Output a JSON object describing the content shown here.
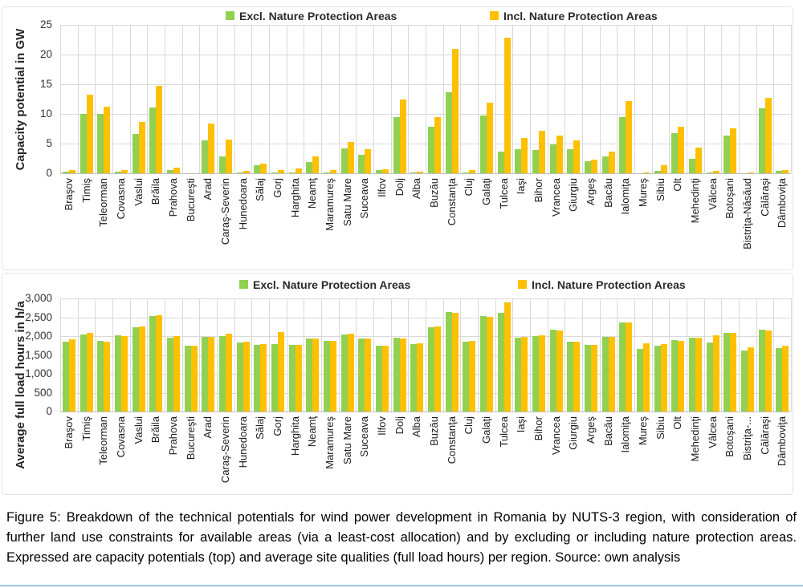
{
  "caption": "Figure 5: Breakdown of the technical potentials for wind power development in Romania by NUTS-3 region, with consideration of further land use constraints for available areas (via a least-cost allocation) and by excluding or including nature protection areas. Expressed are capacity potentials (top) and average site qualities (full load hours) per region. Source: own analysis",
  "page": {
    "bottom_rule_color": "#9DC3E6"
  },
  "colors": {
    "excl": "#92D050",
    "incl": "#FFC000",
    "gridline": "#D9D9D9"
  },
  "chart_data": [
    {
      "type": "bar",
      "title": "",
      "xlabel": "",
      "ylabel": "Capacity potential in GW",
      "ylim": [
        0,
        25
      ],
      "grid": true,
      "legend_position": "top",
      "yticks": [
        {
          "v": 0,
          "label": "0"
        },
        {
          "v": 5,
          "label": "5"
        },
        {
          "v": 10,
          "label": "10"
        },
        {
          "v": 15,
          "label": "15"
        },
        {
          "v": 20,
          "label": "20"
        },
        {
          "v": 25,
          "label": "25"
        }
      ],
      "legend": [
        {
          "label": "Excl. Nature Protection Areas",
          "color": "#92D050"
        },
        {
          "label": "Incl. Nature Protection Areas",
          "color": "#FFC000"
        }
      ],
      "categories": [
        "Braşov",
        "Timiş",
        "Teleorman",
        "Covasna",
        "Vaslui",
        "Brăila",
        "Prahova",
        "Bucureşti",
        "Arad",
        "Caraş-Severin",
        "Hunedoara",
        "Sălaj",
        "Gorj",
        "Harghita",
        "Neamţ",
        "Maramureş",
        "Satu Mare",
        "Suceava",
        "Ilfov",
        "Dolj",
        "Alba",
        "Buzău",
        "Constanţa",
        "Cluj",
        "Galaţi",
        "Tulcea",
        "Iaşi",
        "Bihor",
        "Vrancea",
        "Giurgiu",
        "Argeş",
        "Bacău",
        "Ialomiţa",
        "Mureş",
        "Sibiu",
        "Olt",
        "Mehedinţi",
        "Vâlcea",
        "Botoşani",
        "Bistriţa-Năsăud",
        "Călăraşi",
        "Dâmboviţa"
      ],
      "series": [
        {
          "name": "Excl. Nature Protection Areas",
          "color": "#92D050",
          "values": [
            0.3,
            10.0,
            10.0,
            0.3,
            6.6,
            11.1,
            0.6,
            0.0,
            5.6,
            2.9,
            0.1,
            1.3,
            0.1,
            0.2,
            1.9,
            0.2,
            4.2,
            3.1,
            0.6,
            9.5,
            0.05,
            7.8,
            13.6,
            0.1,
            9.8,
            3.7,
            4.1,
            3.9,
            4.9,
            4.1,
            2.0,
            2.9,
            9.5,
            0.0,
            0.4,
            6.8,
            2.5,
            0.05,
            6.4,
            0.0,
            11.0,
            0.4
          ]
        },
        {
          "name": "Incl. Nature Protection Areas",
          "color": "#FFC000",
          "values": [
            0.6,
            13.2,
            11.2,
            0.5,
            8.6,
            14.8,
            1.0,
            0.0,
            8.4,
            5.7,
            0.4,
            1.6,
            0.6,
            0.8,
            2.8,
            0.5,
            5.3,
            4.1,
            0.7,
            12.4,
            0.3,
            9.4,
            21.0,
            0.6,
            11.9,
            22.9,
            6.0,
            7.2,
            6.3,
            5.5,
            2.3,
            3.6,
            12.2,
            0.15,
            1.4,
            7.9,
            4.3,
            0.4,
            7.6,
            0.05,
            12.7,
            0.5
          ]
        }
      ]
    },
    {
      "type": "bar",
      "title": "",
      "xlabel": "",
      "ylabel": "Average full load hours in h/a",
      "ylim": [
        0,
        3000
      ],
      "grid": true,
      "legend_position": "top",
      "yticks": [
        {
          "v": 0,
          "label": "0"
        },
        {
          "v": 500,
          "label": "500"
        },
        {
          "v": 1000,
          "label": "1,000"
        },
        {
          "v": 1500,
          "label": "1,500"
        },
        {
          "v": 2000,
          "label": "2,000"
        },
        {
          "v": 2500,
          "label": "2,500"
        },
        {
          "v": 3000,
          "label": "3,000"
        }
      ],
      "legend": [
        {
          "label": "Excl. Nature Protection Areas",
          "color": "#92D050"
        },
        {
          "label": "Incl. Nature Protection Areas",
          "color": "#FFC000"
        }
      ],
      "categories": [
        "Braşov",
        "Timiş",
        "Teleorman",
        "Covasna",
        "Vaslui",
        "Brăila",
        "Prahova",
        "Bucureşti",
        "Arad",
        "Caraş-Severin",
        "Hunedoara",
        "Sălaj",
        "Gorj",
        "Harghita",
        "Neamţ",
        "Maramureş",
        "Satu Mare",
        "Suceava",
        "Ilfov",
        "Dolj",
        "Alba",
        "Buzău",
        "Constanţa",
        "Cluj",
        "Galaţi",
        "Tulcea",
        "Iaşi",
        "Bihor",
        "Vrancea",
        "Giurgiu",
        "Argeş",
        "Bacău",
        "Ialomiţa",
        "Mureş",
        "Sibiu",
        "Olt",
        "Mehedinţi",
        "Vâlcea",
        "Botoşani",
        "Bistriţa-...",
        "Călăraşi",
        "Dâmboviţa"
      ],
      "series": [
        {
          "name": "Excl. Nature Protection Areas",
          "color": "#92D050",
          "values": [
            1860,
            2050,
            1870,
            2030,
            2230,
            2540,
            1960,
            1740,
            1990,
            2010,
            1830,
            1770,
            1790,
            1760,
            1940,
            1870,
            2050,
            1930,
            1740,
            1960,
            1790,
            2230,
            2630,
            1850,
            2530,
            2620,
            1960,
            2000,
            2170,
            1860,
            1770,
            1980,
            2370,
            1650,
            1750,
            1890,
            1960,
            1830,
            2080,
            1610,
            2170,
            1680
          ]
        },
        {
          "name": "Incl. Nature Protection Areas",
          "color": "#FFC000",
          "values": [
            1920,
            2080,
            1860,
            2000,
            2250,
            2550,
            2000,
            1740,
            1980,
            2060,
            1860,
            1790,
            2110,
            1770,
            1940,
            1880,
            2070,
            1930,
            1740,
            1930,
            1800,
            2250,
            2620,
            1880,
            2510,
            2890,
            1970,
            2020,
            2160,
            1850,
            1770,
            1980,
            2360,
            1800,
            1780,
            1870,
            1950,
            2030,
            2080,
            1710,
            2150,
            1740
          ]
        }
      ]
    }
  ]
}
